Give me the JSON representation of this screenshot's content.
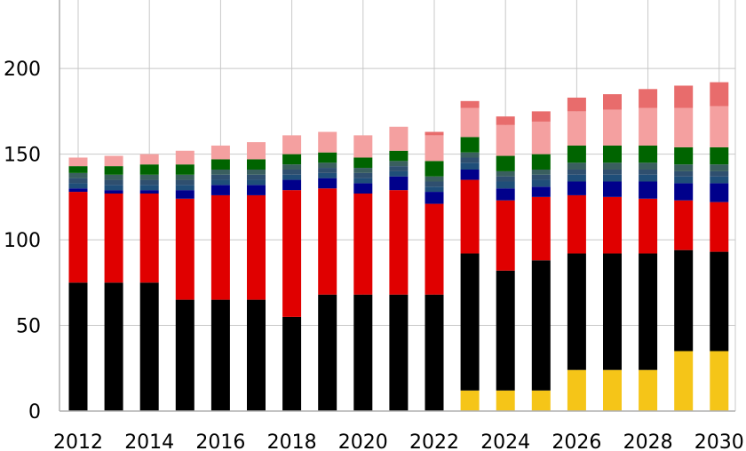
{
  "chart_data": {
    "type": "bar",
    "stacked": true,
    "title": "",
    "xlabel": "",
    "ylabel": "",
    "ylim": [
      0,
      240
    ],
    "y_ticks": [
      0,
      50,
      100,
      150,
      200
    ],
    "x_tick_labels": [
      "2012",
      "2014",
      "2016",
      "2018",
      "2020",
      "2022",
      "2024",
      "2026",
      "2028",
      "2030"
    ],
    "grid": true,
    "legend": "none",
    "categories": [
      "2012",
      "2013",
      "2014",
      "2015",
      "2016",
      "2017",
      "2018",
      "2019",
      "2020",
      "2021",
      "2022",
      "2023",
      "2024",
      "2025",
      "2026",
      "2027",
      "2028",
      "2029",
      "2030"
    ],
    "series": [
      {
        "color": "#f5c518",
        "values": [
          0,
          0,
          0,
          0,
          0,
          0,
          0,
          0,
          0,
          0,
          0,
          12,
          12,
          12,
          24,
          24,
          24,
          35,
          35
        ]
      },
      {
        "color": "#000000",
        "values": [
          75,
          75,
          75,
          65,
          65,
          65,
          55,
          68,
          68,
          68,
          68,
          80,
          70,
          76,
          68,
          68,
          68,
          59,
          58
        ]
      },
      {
        "color": "#e00000",
        "values": [
          53,
          52,
          52,
          59,
          61,
          61,
          74,
          62,
          59,
          61,
          53,
          43,
          41,
          37,
          34,
          33,
          32,
          29,
          29
        ]
      },
      {
        "color": "#00008b",
        "values": [
          2,
          2,
          2,
          5,
          6,
          6,
          6,
          6,
          6,
          8,
          7,
          6,
          7,
          6,
          8,
          9,
          10,
          10,
          11
        ]
      },
      {
        "color": "#1f4e79",
        "values": [
          3,
          3,
          3,
          3,
          3,
          3,
          3,
          3,
          3,
          3,
          3,
          4,
          4,
          4,
          4,
          4,
          4,
          4,
          4
        ]
      },
      {
        "color": "#2f4f6f",
        "values": [
          3,
          3,
          3,
          3,
          3,
          3,
          3,
          3,
          3,
          3,
          3,
          3,
          3,
          3,
          3,
          3,
          3,
          3,
          3
        ]
      },
      {
        "color": "#3a5f5f",
        "values": [
          3,
          3,
          3,
          3,
          3,
          3,
          3,
          3,
          3,
          3,
          3,
          3,
          3,
          3,
          4,
          4,
          4,
          4,
          4
        ]
      },
      {
        "color": "#006400",
        "values": [
          4,
          5,
          6,
          6,
          6,
          6,
          6,
          6,
          6,
          6,
          9,
          9,
          9,
          9,
          10,
          10,
          10,
          10,
          10
        ]
      },
      {
        "color": "#f4a0a0",
        "values": [
          5,
          6,
          6,
          8,
          8,
          10,
          11,
          12,
          13,
          14,
          15,
          17,
          18,
          19,
          20,
          21,
          22,
          23,
          24
        ]
      },
      {
        "color": "#e86c6c",
        "values": [
          0,
          0,
          0,
          0,
          0,
          0,
          0,
          0,
          0,
          0,
          2,
          4,
          5,
          6,
          8,
          9,
          11,
          13,
          14
        ]
      }
    ]
  }
}
